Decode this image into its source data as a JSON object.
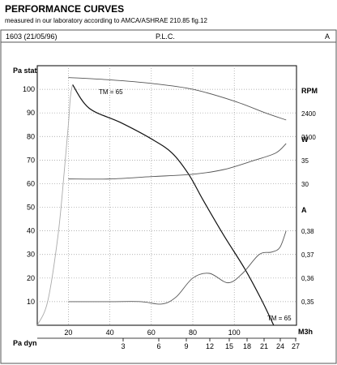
{
  "header": {
    "title": "PERFORMANCE CURVES",
    "subtitle": "measured in our laboratory according to AMCA/ASHRAE 210.85 fig.12"
  },
  "chart_data": {
    "type": "line",
    "id_label": "1603 (21/05/96)",
    "model_label": "P.L.C.",
    "variant_label": "A",
    "x_axis": {
      "label": "M3h",
      "range": [
        5,
        130
      ],
      "ticks": [
        20,
        40,
        60,
        80,
        100
      ]
    },
    "pa_dyn_axis": {
      "label": "Pa dyn",
      "ticks": [
        "3",
        "6",
        "9",
        "12",
        "15",
        "18",
        "21",
        "24",
        "27"
      ]
    },
    "left_axis": {
      "label": "Pa stat",
      "range": [
        0,
        110
      ],
      "ticks": [
        10,
        20,
        30,
        40,
        50,
        60,
        70,
        80,
        90,
        100
      ]
    },
    "right_axes": [
      {
        "label": "RPM",
        "ticks": [
          "2400",
          "2100"
        ]
      },
      {
        "label": "W",
        "ticks": [
          "35",
          "30"
        ]
      },
      {
        "label": "A",
        "ticks": [
          "0,38",
          "0,37",
          "0,36",
          "0,35"
        ]
      }
    ],
    "annotations": [
      "TM = 65",
      "TM = 65"
    ],
    "series": [
      {
        "kind": "pressure",
        "color": "#111111",
        "points": [
          [
            22,
            102
          ],
          [
            30,
            92
          ],
          [
            45,
            86
          ],
          [
            60,
            79
          ],
          [
            70,
            73
          ],
          [
            78,
            64
          ],
          [
            85,
            53
          ],
          [
            95,
            38
          ],
          [
            105,
            24
          ],
          [
            113,
            11
          ],
          [
            119,
            0
          ]
        ]
      },
      {
        "kind": "rpm",
        "color": "#555555",
        "points": [
          [
            20,
            105
          ],
          [
            40,
            104
          ],
          [
            60,
            102.5
          ],
          [
            80,
            100
          ],
          [
            100,
            95
          ],
          [
            115,
            90
          ],
          [
            125,
            87
          ]
        ]
      },
      {
        "kind": "power",
        "color": "#555555",
        "points": [
          [
            20,
            62
          ],
          [
            40,
            62
          ],
          [
            60,
            63
          ],
          [
            80,
            64
          ],
          [
            95,
            66
          ],
          [
            110,
            70
          ],
          [
            120,
            73
          ],
          [
            125,
            77
          ]
        ]
      },
      {
        "kind": "current",
        "color": "#555555",
        "points": [
          [
            20,
            10
          ],
          [
            40,
            10
          ],
          [
            55,
            10
          ],
          [
            65,
            9
          ],
          [
            72,
            12
          ],
          [
            80,
            20
          ],
          [
            88,
            22
          ],
          [
            97,
            18
          ],
          [
            104,
            22
          ],
          [
            112,
            30
          ],
          [
            118,
            31
          ],
          [
            122,
            33
          ],
          [
            125,
            40
          ]
        ]
      },
      {
        "kind": "dynamic",
        "color": "#aaaaaa",
        "points": [
          [
            5,
            0
          ],
          [
            10,
            10
          ],
          [
            15,
            38
          ],
          [
            18,
            65
          ],
          [
            20,
            85
          ],
          [
            21,
            97
          ],
          [
            22,
            102
          ]
        ]
      }
    ]
  }
}
